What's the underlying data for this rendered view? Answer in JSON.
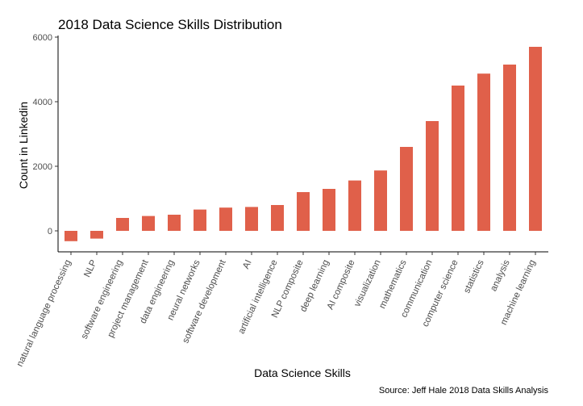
{
  "chart_data": {
    "type": "bar",
    "title": "2018 Data Science Skills Distribution",
    "xlabel": "Data Science Skills",
    "ylabel": "Count in Linkedin",
    "caption": "Source: Jeff Hale 2018 Data Skills Analysis",
    "ylim": [
      -650,
      6050
    ],
    "yticks": [
      0,
      2000,
      4000,
      6000
    ],
    "bar_color": "#e0604a",
    "grid": false,
    "legend": "none",
    "categories": [
      "natural language processing",
      "NLP",
      "software engineering",
      "project management",
      "data engineering",
      "neural networks",
      "software development",
      "AI",
      "artificial intelligence",
      "NLP composite",
      "deep learning",
      "AI composite",
      "visualization",
      "mathematics",
      "communication",
      "computer science",
      "statistics",
      "analysis",
      "machine learning"
    ],
    "values": [
      -320,
      -240,
      400,
      460,
      500,
      660,
      720,
      740,
      800,
      1200,
      1300,
      1560,
      1870,
      2600,
      3400,
      4500,
      4870,
      5150,
      5700
    ]
  }
}
